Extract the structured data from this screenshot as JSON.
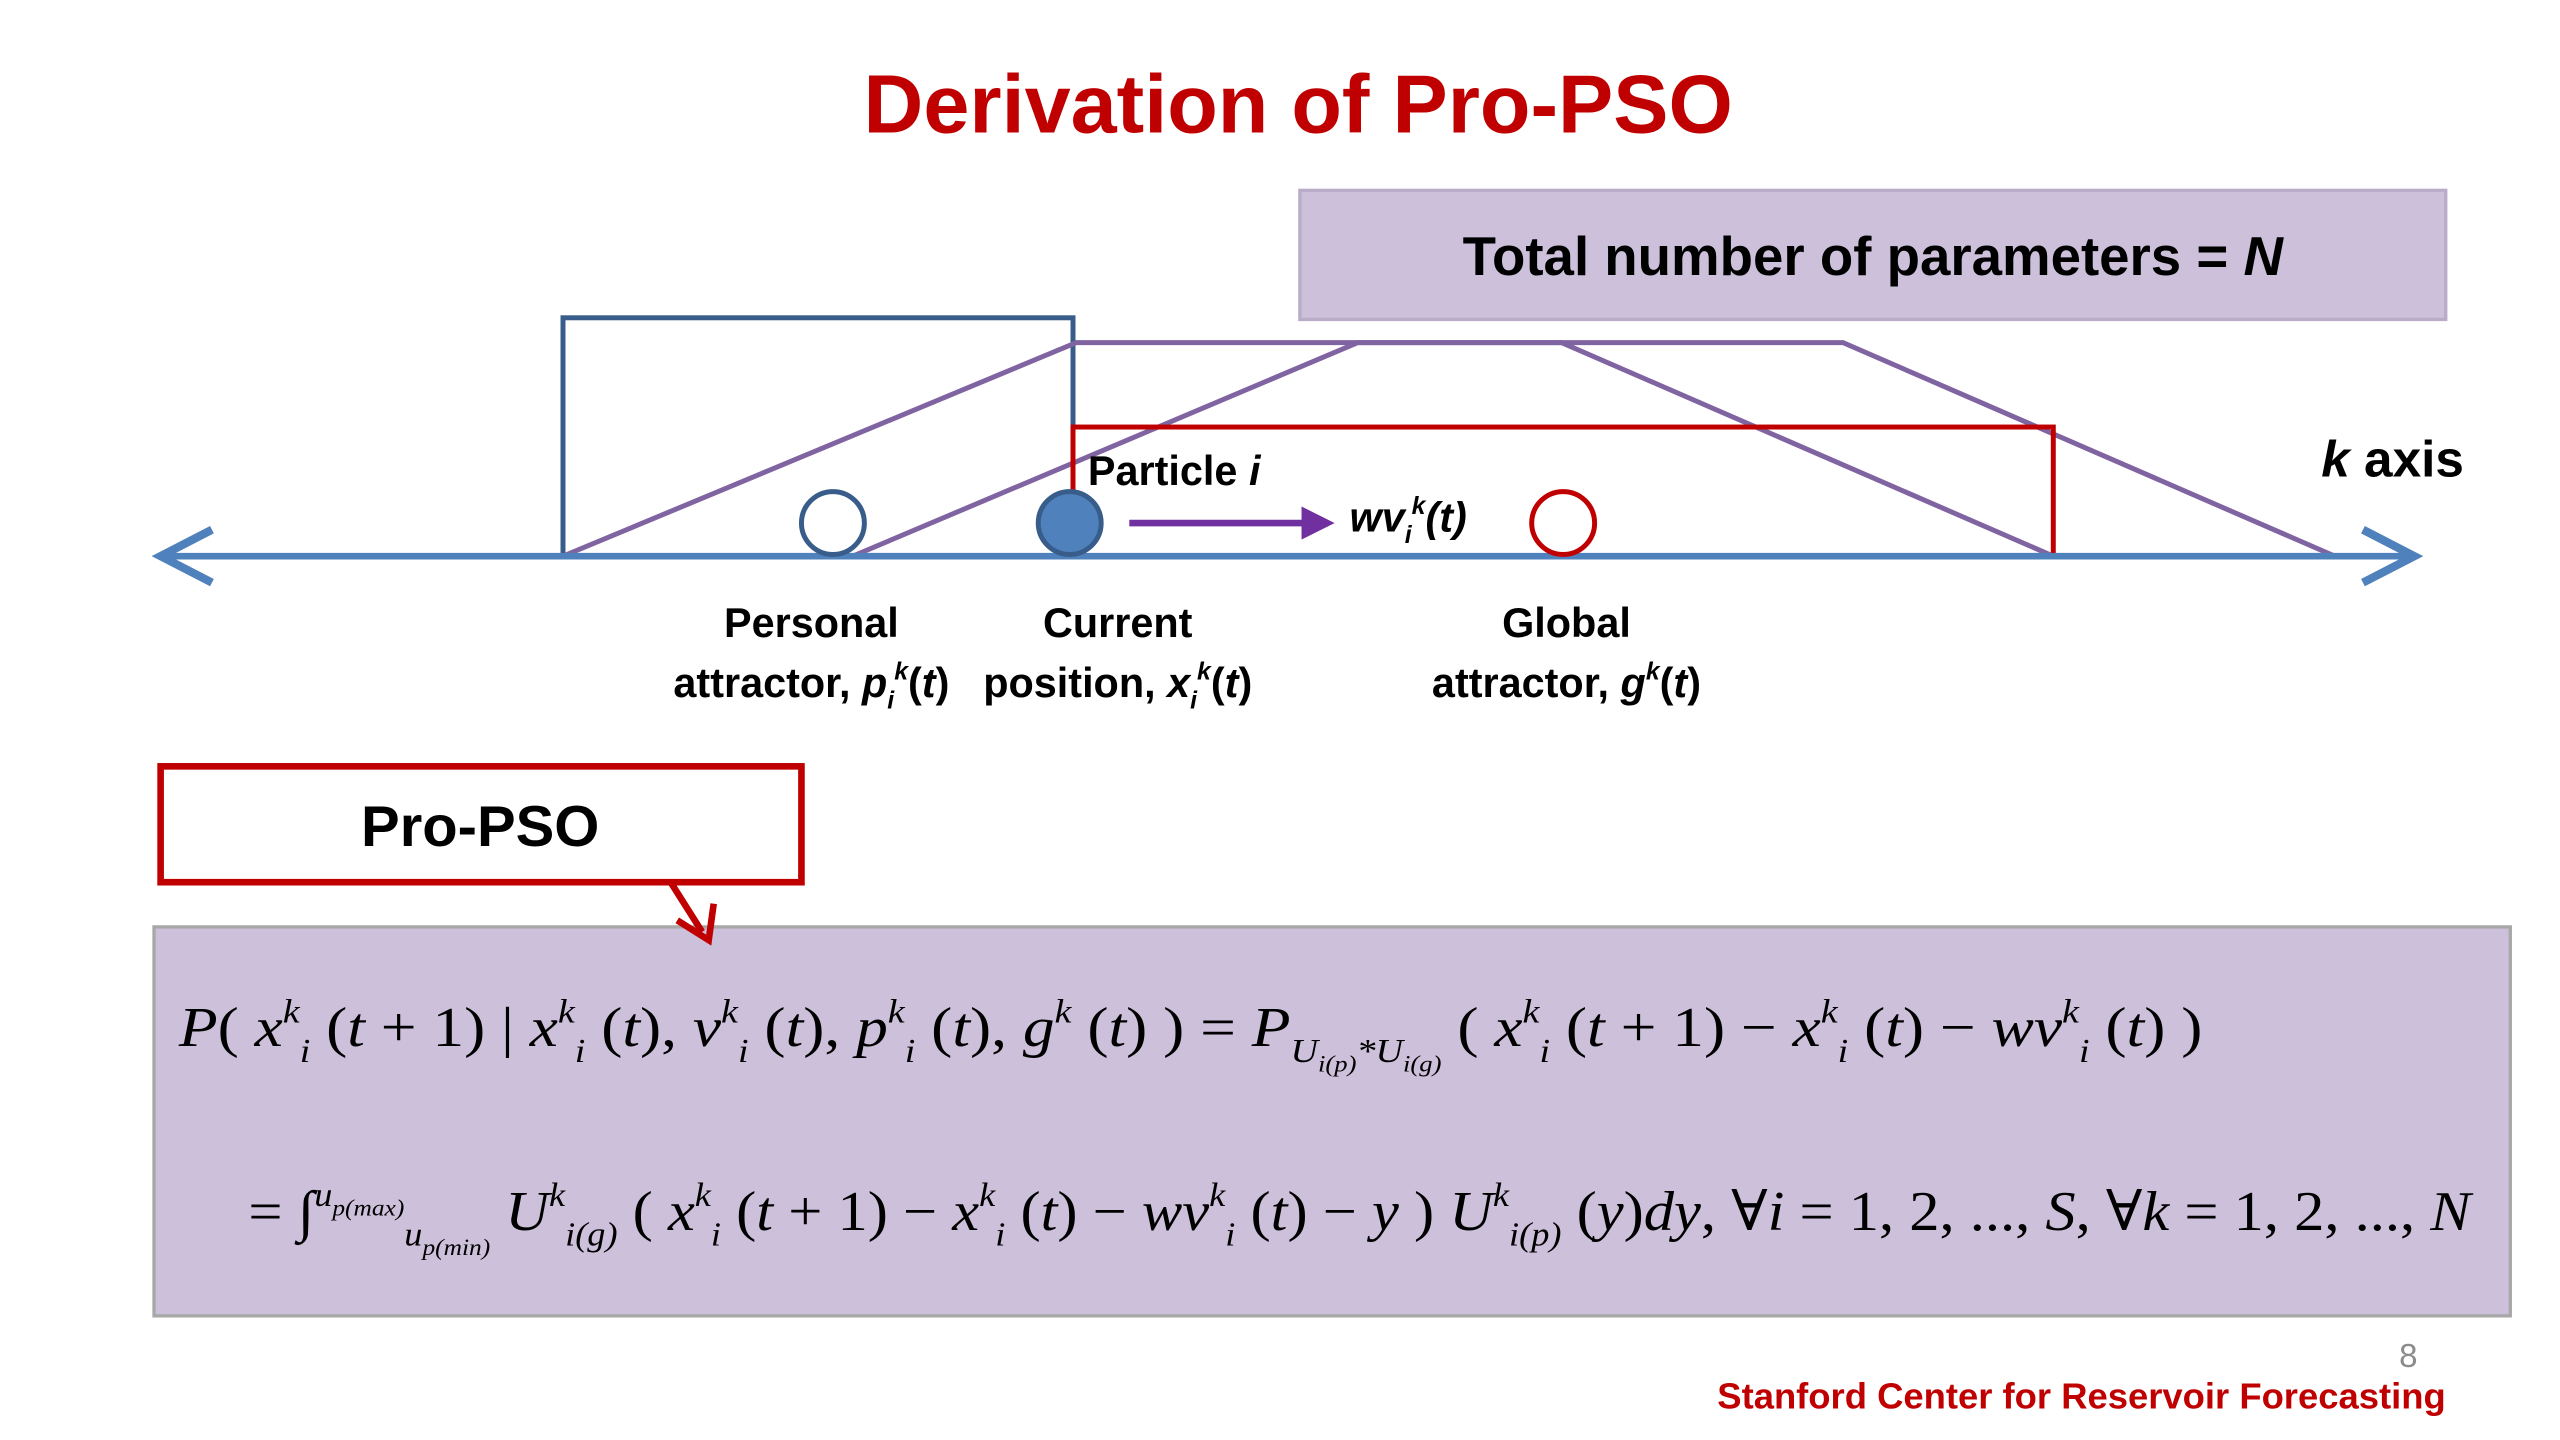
{
  "title": "Derivation of Pro-PSO",
  "parameters_box": [
    {
      "text": "Total number of parameters = "
    },
    {
      "text": "N",
      "italic": true
    }
  ],
  "diagram": {
    "particle_label": [
      {
        "text": "Particle "
      },
      {
        "text": "i",
        "italic": true
      }
    ],
    "velocity_label": [
      {
        "text": "wv",
        "italic": true
      },
      {
        "text": "i",
        "italic": true,
        "pos": "sub"
      },
      {
        "text": "k",
        "italic": true,
        "pos": "sup"
      },
      {
        "text": "(t)",
        "italic": true
      }
    ],
    "axis_label": [
      {
        "text": "k",
        "italic": true
      },
      {
        "text": " axis"
      }
    ],
    "personal": {
      "line1": "Personal",
      "line2": [
        {
          "text": "attractor, "
        },
        {
          "text": "p",
          "italic": true
        },
        {
          "text": "i",
          "italic": true,
          "pos": "sub"
        },
        {
          "text": "k",
          "italic": true,
          "pos": "sup"
        },
        {
          "text": "("
        },
        {
          "text": "t",
          "italic": true
        },
        {
          "text": ")"
        }
      ]
    },
    "current": {
      "line1": "Current",
      "line2": [
        {
          "text": "position, "
        },
        {
          "text": "x",
          "italic": true
        },
        {
          "text": "i",
          "italic": true,
          "pos": "sub"
        },
        {
          "text": "k",
          "italic": true,
          "pos": "sup"
        },
        {
          "text": "("
        },
        {
          "text": "t",
          "italic": true
        },
        {
          "text": ")"
        }
      ]
    },
    "global": {
      "line1": "Global",
      "line2": [
        {
          "text": "attractor, "
        },
        {
          "text": "g",
          "italic": true
        },
        {
          "text": "k",
          "italic": true,
          "pos": "sup"
        },
        {
          "text": "("
        },
        {
          "text": "t",
          "italic": true
        },
        {
          "text": ")"
        }
      ]
    }
  },
  "method_box": "Pro-PSO",
  "equations": [
    [
      {
        "text": "P",
        "italic": true
      },
      {
        "text": "( "
      },
      {
        "text": "x",
        "italic": true
      },
      {
        "text": "k",
        "italic": true,
        "pos": "sup"
      },
      {
        "text": "i",
        "italic": true,
        "pos": "sub"
      },
      {
        "text": " ("
      },
      {
        "text": "t",
        "italic": true
      },
      {
        "text": " + 1) | "
      },
      {
        "text": "x",
        "italic": true
      },
      {
        "text": "k",
        "italic": true,
        "pos": "sup"
      },
      {
        "text": "i",
        "italic": true,
        "pos": "sub"
      },
      {
        "text": " ("
      },
      {
        "text": "t",
        "italic": true
      },
      {
        "text": "), "
      },
      {
        "text": "v",
        "italic": true
      },
      {
        "text": "k",
        "italic": true,
        "pos": "sup"
      },
      {
        "text": "i",
        "italic": true,
        "pos": "sub"
      },
      {
        "text": " ("
      },
      {
        "text": "t",
        "italic": true
      },
      {
        "text": "), "
      },
      {
        "text": "p",
        "italic": true
      },
      {
        "text": "k",
        "italic": true,
        "pos": "sup"
      },
      {
        "text": "i",
        "italic": true,
        "pos": "sub"
      },
      {
        "text": " ("
      },
      {
        "text": "t",
        "italic": true
      },
      {
        "text": "), "
      },
      {
        "text": "g",
        "italic": true
      },
      {
        "text": "k",
        "italic": true,
        "pos": "sup"
      },
      {
        "text": " ("
      },
      {
        "text": "t",
        "italic": true
      },
      {
        "text": ") ) = "
      },
      {
        "text": "P",
        "italic": true
      },
      {
        "text": "U",
        "italic": true,
        "pos": "sub"
      },
      {
        "text": "i(p)",
        "italic": true,
        "pos": "subsub"
      },
      {
        "text": "*U",
        "italic": true,
        "pos": "sub"
      },
      {
        "text": "i(g)",
        "italic": true,
        "pos": "subsub"
      },
      {
        "text": " ( "
      },
      {
        "text": "x",
        "italic": true
      },
      {
        "text": "k",
        "italic": true,
        "pos": "sup"
      },
      {
        "text": "i",
        "italic": true,
        "pos": "sub"
      },
      {
        "text": " ("
      },
      {
        "text": "t",
        "italic": true
      },
      {
        "text": " + 1) − "
      },
      {
        "text": "x",
        "italic": true
      },
      {
        "text": "k",
        "italic": true,
        "pos": "sup"
      },
      {
        "text": "i",
        "italic": true,
        "pos": "sub"
      },
      {
        "text": " ("
      },
      {
        "text": "t",
        "italic": true
      },
      {
        "text": ") − "
      },
      {
        "text": "wv",
        "italic": true
      },
      {
        "text": "k",
        "italic": true,
        "pos": "sup"
      },
      {
        "text": "i",
        "italic": true,
        "pos": "sub"
      },
      {
        "text": " ("
      },
      {
        "text": "t",
        "italic": true
      },
      {
        "text": ") )"
      }
    ],
    [
      {
        "text": "= ∫"
      },
      {
        "text": "u",
        "italic": true,
        "pos": "sup"
      },
      {
        "text": "p(max)",
        "italic": true,
        "pos": "supsub"
      },
      {
        "text": "u",
        "italic": true,
        "pos": "sub"
      },
      {
        "text": "p(min)",
        "italic": true,
        "pos": "subsub"
      },
      {
        "text": " U",
        "italic": true
      },
      {
        "text": "k",
        "italic": true,
        "pos": "sup"
      },
      {
        "text": "i(g)",
        "italic": true,
        "pos": "sub"
      },
      {
        "text": " ( "
      },
      {
        "text": "x",
        "italic": true
      },
      {
        "text": "k",
        "italic": true,
        "pos": "sup"
      },
      {
        "text": "i",
        "italic": true,
        "pos": "sub"
      },
      {
        "text": " ("
      },
      {
        "text": "t",
        "italic": true
      },
      {
        "text": " + 1) − "
      },
      {
        "text": "x",
        "italic": true
      },
      {
        "text": "k",
        "italic": true,
        "pos": "sup"
      },
      {
        "text": "i",
        "italic": true,
        "pos": "sub"
      },
      {
        "text": " ("
      },
      {
        "text": "t",
        "italic": true
      },
      {
        "text": ") − "
      },
      {
        "text": "wv",
        "italic": true
      },
      {
        "text": "k",
        "italic": true,
        "pos": "sup"
      },
      {
        "text": "i",
        "italic": true,
        "pos": "sub"
      },
      {
        "text": " ("
      },
      {
        "text": "t",
        "italic": true
      },
      {
        "text": ") − "
      },
      {
        "text": "y",
        "italic": true
      },
      {
        "text": " ) "
      },
      {
        "text": "U",
        "italic": true
      },
      {
        "text": "k",
        "italic": true,
        "pos": "sup"
      },
      {
        "text": "i(p)",
        "italic": true,
        "pos": "sub"
      },
      {
        "text": " ("
      },
      {
        "text": "y",
        "italic": true
      },
      {
        "text": ")"
      },
      {
        "text": "dy",
        "italic": true
      },
      {
        "text": ",  ∀"
      },
      {
        "text": "i",
        "italic": true
      },
      {
        "text": " = 1, 2, ..., "
      },
      {
        "text": "S",
        "italic": true
      },
      {
        "text": ",  ∀"
      },
      {
        "text": "k",
        "italic": true
      },
      {
        "text": " = 1, 2, ..., "
      },
      {
        "text": "N",
        "italic": true
      }
    ]
  ],
  "page_number": "8",
  "footer": "Stanford Center for Reservoir Forecasting"
}
